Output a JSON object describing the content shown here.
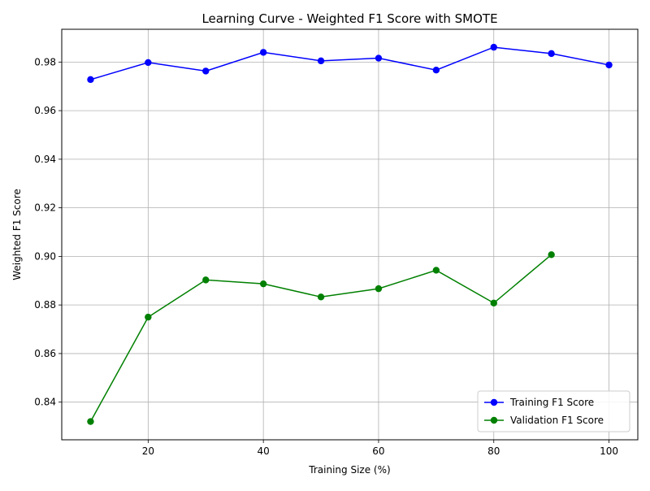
{
  "chart_data": {
    "type": "line",
    "title": "Learning Curve - Weighted F1 Score with SMOTE",
    "xlabel": "Training Size (%)",
    "ylabel": "Weighted F1 Score",
    "xlim": [
      5,
      105
    ],
    "ylim": [
      0.8245,
      0.9935
    ],
    "xticks": [
      20,
      40,
      60,
      80,
      100
    ],
    "yticks": [
      0.84,
      0.86,
      0.88,
      0.9,
      0.92,
      0.94,
      0.96,
      0.98
    ],
    "ytick_labels": [
      "0.84",
      "0.86",
      "0.88",
      "0.90",
      "0.92",
      "0.94",
      "0.96",
      "0.98"
    ],
    "grid": true,
    "legend_position": "lower-right",
    "series": [
      {
        "name": "Training F1 Score",
        "color": "#0000ff",
        "marker": "circle",
        "x": [
          10,
          20,
          30,
          40,
          50,
          60,
          70,
          80,
          90,
          100
        ],
        "values": [
          0.9728,
          0.9798,
          0.9763,
          0.984,
          0.9805,
          0.9816,
          0.9767,
          0.9861,
          0.9835,
          0.9788
        ]
      },
      {
        "name": "Validation F1 Score",
        "color": "#008000",
        "marker": "circle",
        "x": [
          10,
          20,
          30,
          40,
          50,
          60,
          70,
          80,
          90
        ],
        "values": [
          0.832,
          0.875,
          0.8903,
          0.8887,
          0.8833,
          0.8867,
          0.8943,
          0.8808,
          0.9007
        ]
      }
    ]
  }
}
